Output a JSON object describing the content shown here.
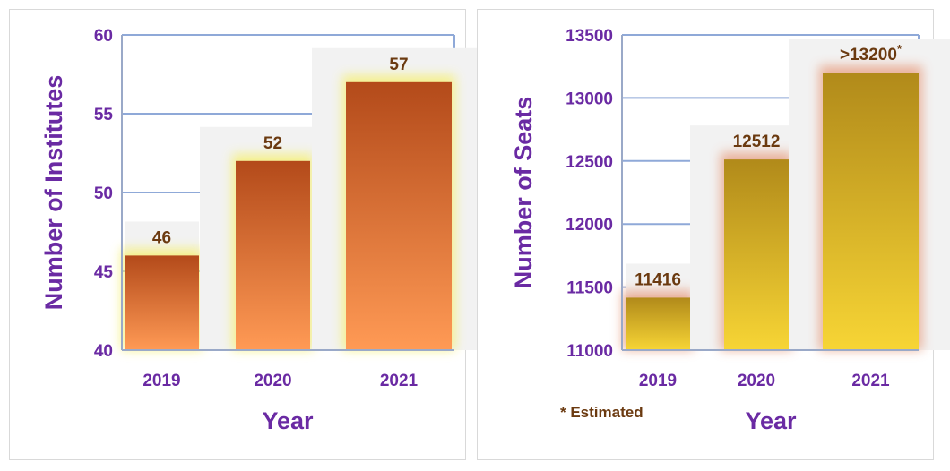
{
  "chart_data": [
    {
      "type": "bar",
      "categories": [
        "2019",
        "2020",
        "2021"
      ],
      "values": [
        46,
        52,
        57
      ],
      "data_labels": [
        "46",
        "52",
        "57"
      ],
      "ylabel": "Number of Institutes",
      "xlabel": "Year",
      "ylim": [
        40,
        60
      ],
      "yticks": [
        40,
        45,
        50,
        55,
        60
      ],
      "grid": true,
      "bar_colors": [
        "#b34a1a",
        "#ff9a55"
      ],
      "glow_color": "#f5f07a"
    },
    {
      "type": "bar",
      "categories": [
        "2019",
        "2020",
        "2021"
      ],
      "values": [
        11416,
        12512,
        13200
      ],
      "data_labels": [
        "11416",
        "12512",
        ">13200*"
      ],
      "ylabel": "Number of Seats",
      "xlabel": "Year",
      "ylim": [
        11000,
        13500
      ],
      "yticks": [
        11000,
        11500,
        12000,
        12500,
        13000,
        13500
      ],
      "grid": true,
      "bar_colors": [
        "#b18a1a",
        "#f7d535"
      ],
      "glow_color": "#e8a58a",
      "annotation": "* Estimated"
    }
  ],
  "colors": {
    "axis_text": "#6a2aa3",
    "grid_line": "#8fa9d8",
    "data_label": "#6b3a10"
  }
}
